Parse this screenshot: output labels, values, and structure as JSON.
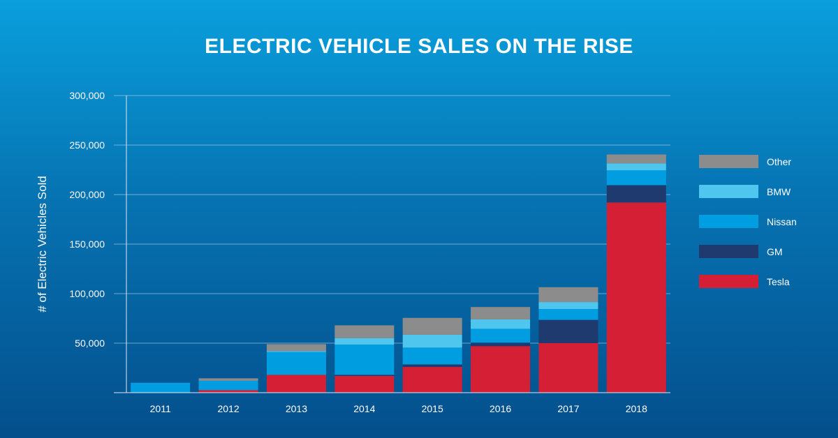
{
  "chart_data": {
    "type": "bar",
    "stacked": true,
    "title": "ELECTRIC VEHICLE SALES ON THE RISE",
    "ylabel": "# of Electric Vehicles Sold",
    "xlabel": "",
    "ylim": [
      0,
      300000
    ],
    "yticks": [
      50000,
      100000,
      150000,
      200000,
      250000,
      300000
    ],
    "ytick_labels": [
      "50,000",
      "100,000",
      "150,000",
      "200,000",
      "250,000",
      "300,000"
    ],
    "grid": true,
    "legend_position": "right",
    "categories": [
      "2011",
      "2012",
      "2013",
      "2014",
      "2015",
      "2016",
      "2017",
      "2018"
    ],
    "series": [
      {
        "name": "Tesla",
        "color": "#d41f34",
        "values": [
          0,
          2500,
          18000,
          17000,
          26000,
          47000,
          50000,
          192000
        ]
      },
      {
        "name": "GM",
        "color": "#1f3a6e",
        "values": [
          0,
          0,
          0,
          1000,
          2500,
          3500,
          23500,
          17500
        ]
      },
      {
        "name": "Nissan",
        "color": "#009ee0",
        "values": [
          10000,
          9500,
          23000,
          30500,
          17000,
          14000,
          11000,
          15000
        ]
      },
      {
        "name": "BMW",
        "color": "#4fc6ee",
        "values": [
          0,
          0,
          1000,
          6500,
          13000,
          9500,
          7000,
          7000
        ]
      },
      {
        "name": "Other",
        "color": "#8c8c8c",
        "values": [
          0,
          2500,
          7000,
          13000,
          17000,
          12500,
          15000,
          9000
        ]
      }
    ]
  }
}
